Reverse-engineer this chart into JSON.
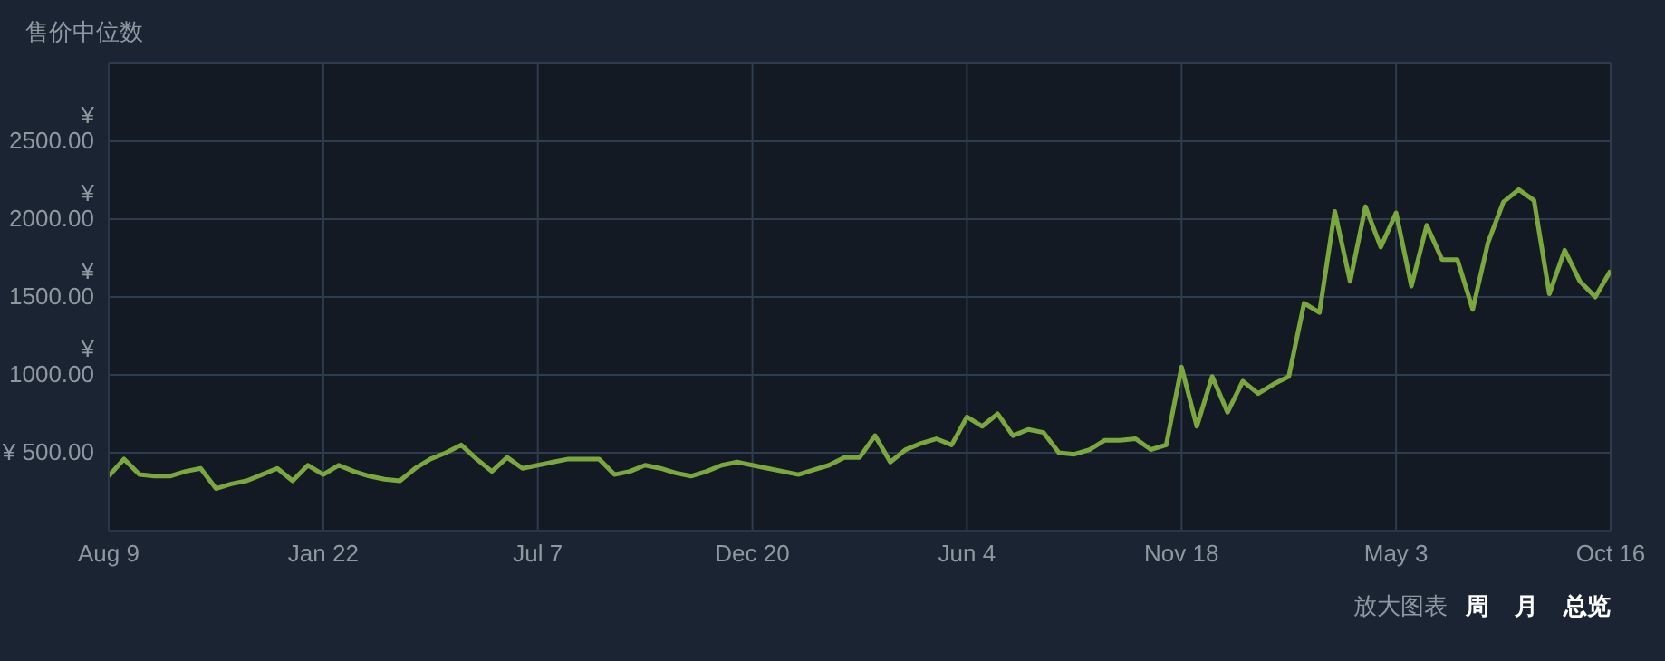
{
  "chart_data": {
    "type": "line",
    "title": "售价中位数",
    "annotations": [
      "放大图表",
      "周",
      "月",
      "总览"
    ],
    "categories": [
      "Aug 9",
      null,
      null,
      null,
      null,
      null,
      null,
      null,
      null,
      null,
      null,
      null,
      null,
      null,
      "Jan 22",
      null,
      null,
      null,
      null,
      null,
      null,
      null,
      null,
      null,
      null,
      null,
      null,
      null,
      "Jul 7",
      null,
      null,
      null,
      null,
      null,
      null,
      null,
      null,
      null,
      null,
      null,
      null,
      null,
      "Dec 20",
      null,
      null,
      null,
      null,
      null,
      null,
      null,
      null,
      null,
      null,
      null,
      null,
      null,
      "Jun 4",
      null,
      null,
      null,
      null,
      null,
      null,
      null,
      null,
      null,
      null,
      null,
      null,
      null,
      "Nov 18",
      null,
      null,
      null,
      null,
      null,
      null,
      null,
      null,
      null,
      null,
      null,
      null,
      null,
      "May 3",
      null,
      null,
      null,
      null,
      null,
      null,
      null,
      null,
      null,
      null,
      null,
      null,
      null,
      "Oct 16"
    ],
    "ylim": [
      0,
      3000
    ],
    "yticks": [
      {
        "value": 500,
        "label": "¥ 500.00"
      },
      {
        "value": 1000,
        "label": "¥ 1000.00"
      },
      {
        "value": 1500,
        "label": "¥ 1500.00"
      },
      {
        "value": 2000,
        "label": "¥ 2000.00"
      },
      {
        "value": 2500,
        "label": "¥ 2500.00"
      }
    ],
    "grid": true,
    "marker": "none",
    "line_style": "solid",
    "series": [
      {
        "color": "#7ba73f",
        "values": [
          350,
          460,
          360,
          350,
          350,
          380,
          400,
          270,
          300,
          320,
          360,
          400,
          320,
          420,
          360,
          420,
          380,
          350,
          330,
          320,
          400,
          460,
          500,
          550,
          460,
          380,
          470,
          400,
          420,
          440,
          460,
          460,
          460,
          360,
          380,
          420,
          400,
          370,
          350,
          380,
          420,
          440,
          420,
          400,
          380,
          360,
          390,
          420,
          470,
          470,
          610,
          440,
          520,
          560,
          590,
          550,
          730,
          670,
          750,
          610,
          650,
          630,
          500,
          490,
          520,
          580,
          580,
          590,
          520,
          550,
          1050,
          670,
          990,
          760,
          960,
          880,
          940,
          990,
          1460,
          1400,
          2050,
          1600,
          2080,
          1820,
          2040,
          1570,
          1960,
          1740,
          1740,
          1420,
          1850,
          2110,
          2190,
          2120,
          1520,
          1800,
          1600,
          1500,
          1670
        ]
      }
    ]
  }
}
